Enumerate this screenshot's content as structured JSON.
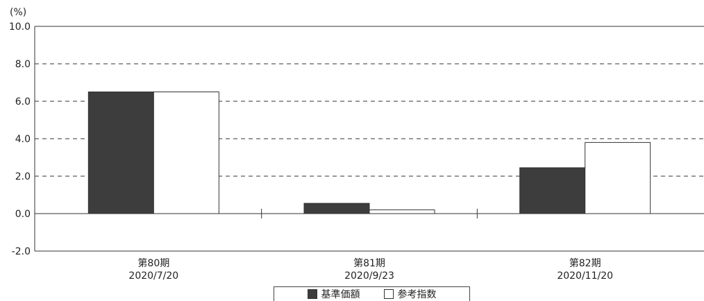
{
  "chart_data": {
    "type": "bar",
    "unit_label": "(%)",
    "categories": [
      {
        "period": "第80期",
        "date": "2020/7/20"
      },
      {
        "period": "第81期",
        "date": "2020/9/23"
      },
      {
        "period": "第82期",
        "date": "2020/11/20"
      }
    ],
    "series": [
      {
        "name": "基準価額",
        "color": "#3d3d3d",
        "values": [
          6.5,
          0.55,
          2.45
        ]
      },
      {
        "name": "参考指数",
        "color": "#ffffff",
        "values": [
          6.5,
          0.2,
          3.8
        ]
      }
    ],
    "ylim": [
      -2.0,
      10.0
    ],
    "yticks": [
      "10.0",
      "8.0",
      "6.0",
      "4.0",
      "2.0",
      "0.0",
      "-2.0"
    ],
    "grid": "dashed",
    "legend_position": "bottom-center"
  }
}
